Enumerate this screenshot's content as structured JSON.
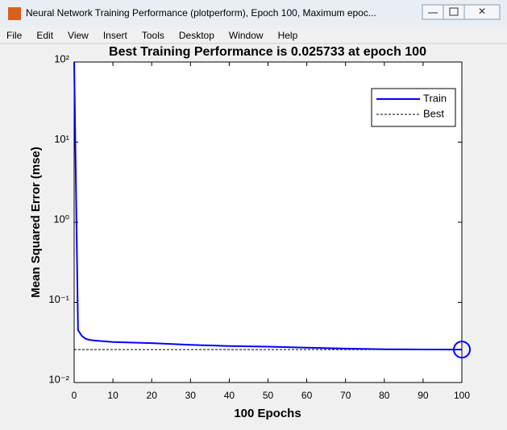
{
  "window": {
    "title": "Neural Network Training Performance (plotperform), Epoch 100, Maximum epoc...",
    "menu": [
      "File",
      "Edit",
      "View",
      "Insert",
      "Tools",
      "Desktop",
      "Window",
      "Help"
    ]
  },
  "chart_data": {
    "type": "line",
    "title": "Best Training Performance is 0.025733 at epoch 100",
    "xlabel": "100 Epochs",
    "ylabel": "Mean Squared Error  (mse)",
    "x": [
      0,
      1,
      2,
      3,
      4,
      5,
      10,
      20,
      30,
      40,
      50,
      60,
      70,
      80,
      90,
      100
    ],
    "series": [
      {
        "name": "Train",
        "color": "#0000ff",
        "values": [
          100,
          0.045,
          0.038,
          0.035,
          0.034,
          0.0335,
          0.032,
          0.031,
          0.0295,
          0.0285,
          0.028,
          0.0272,
          0.0265,
          0.026,
          0.0258,
          0.025733
        ]
      }
    ],
    "best": {
      "name": "Best",
      "epoch": 100,
      "value": 0.025733,
      "color": "#000000"
    },
    "xlim": [
      0,
      100
    ],
    "xticks": [
      0,
      10,
      20,
      30,
      40,
      50,
      60,
      70,
      80,
      90,
      100
    ],
    "ylim": [
      0.01,
      100
    ],
    "yscale": "log",
    "yticks": [
      {
        "value": 0.01,
        "label": "10⁻²"
      },
      {
        "value": 0.1,
        "label": "10⁻¹"
      },
      {
        "value": 1,
        "label": "10⁰"
      },
      {
        "value": 10,
        "label": "10¹"
      },
      {
        "value": 100,
        "label": "10²"
      }
    ],
    "legend": "upper right"
  }
}
